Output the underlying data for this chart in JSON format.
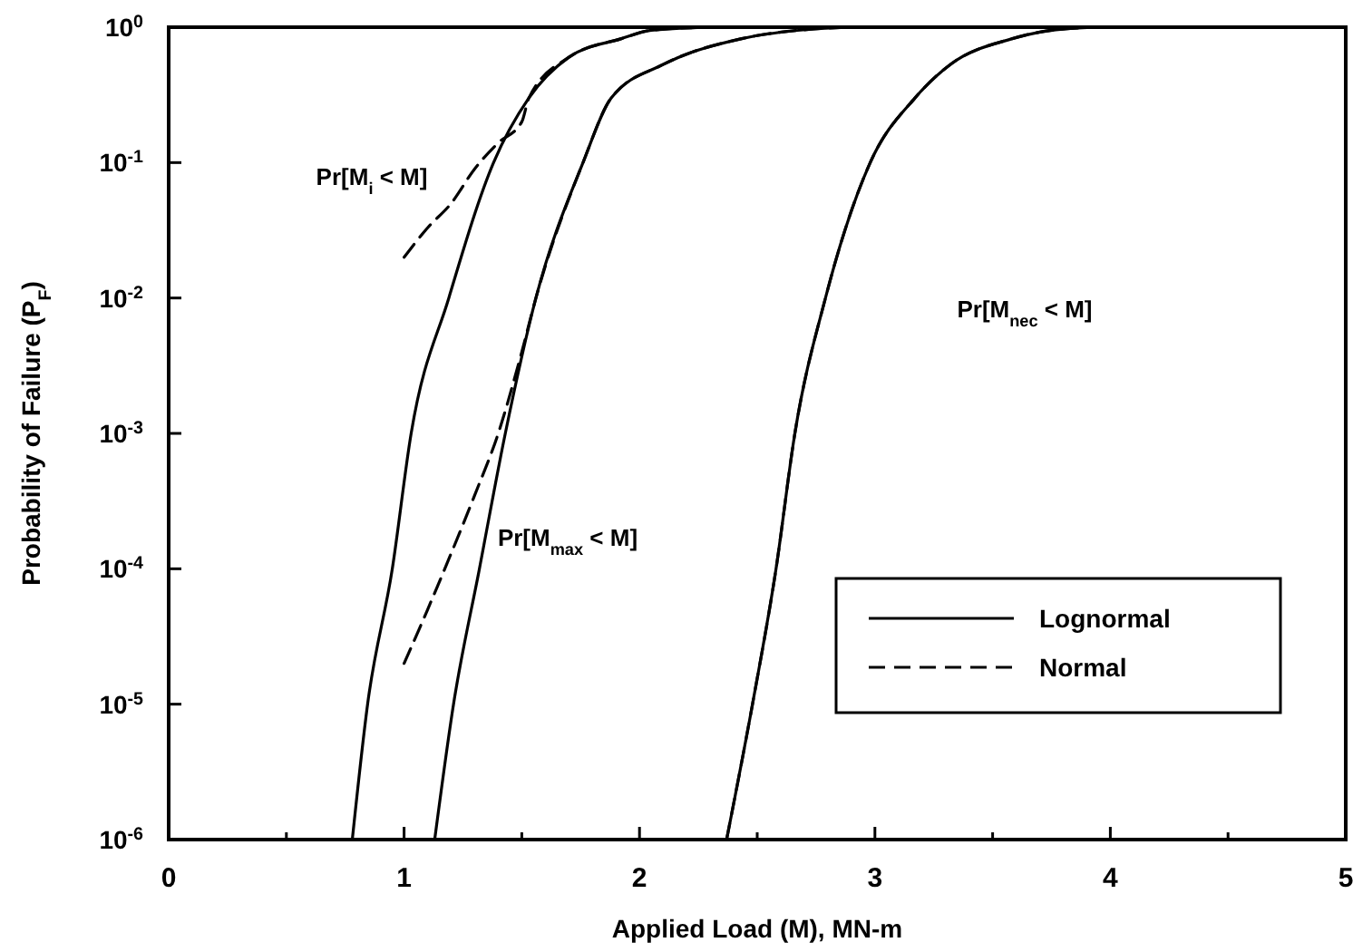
{
  "chart_data": {
    "type": "line",
    "xlabel": "Applied Load (M), MN-m",
    "ylabel": "Probability of Failure (P$_{F}$)",
    "log": "y",
    "xlim": [
      0,
      5
    ],
    "ylim": [
      1e-06,
      1
    ],
    "xticks": [
      0,
      {
        "value": 0.5,
        "label": null
      },
      1,
      {
        "value": 1.5,
        "label": null
      },
      2,
      {
        "value": 2.5,
        "label": null
      },
      3,
      {
        "value": 3.5,
        "label": null
      },
      4,
      {
        "value": 4.5,
        "label": null
      },
      5
    ],
    "yticks": [
      {
        "value": 1e-06,
        "label": "10$^{-6}$"
      },
      {
        "value": 1e-05,
        "label": "10$^{-5}$"
      },
      {
        "value": 0.0001,
        "label": "10$^{-4}$"
      },
      {
        "value": 0.001,
        "label": "10$^{-3}$"
      },
      {
        "value": 0.01,
        "label": "10$^{-2}$"
      },
      {
        "value": 0.1,
        "label": "10$^{-1}$"
      },
      {
        "value": 1,
        "label": "10$^{0}$"
      }
    ],
    "grid": false,
    "legend": "bottom right",
    "series": [
      {
        "name": "Lognormal",
        "color": "#000000",
        "line_style": "solid",
        "x": [
          0.78,
          0.845,
          0.95,
          1.03,
          1.19,
          1.38,
          1.53,
          1.7,
          1.92,
          2.05,
          2.3
        ],
        "values": [
          1e-06,
          1e-05,
          0.0001,
          0.001,
          0.01,
          0.1,
          0.3,
          0.6,
          0.82,
          0.95,
          1
        ]
      },
      {
        "name": "Normal",
        "color": "#000000",
        "line_style": "dashed",
        "x": [
          1.0,
          1.1,
          1.2,
          1.3,
          1.4,
          1.5,
          1.53,
          1.7,
          1.92,
          2.05,
          2.3
        ],
        "values": [
          0.02,
          0.033,
          0.05,
          0.09,
          0.14,
          0.2,
          0.3,
          0.6,
          0.82,
          0.95,
          1
        ]
      },
      {
        "color": "#000000",
        "line_style": "solid",
        "x": [
          1.13,
          1.21,
          1.32,
          1.43,
          1.56,
          1.76,
          1.88,
          2.1,
          2.43,
          2.74,
          2.9
        ],
        "values": [
          1e-06,
          1e-05,
          0.0001,
          0.001,
          0.01,
          0.1,
          0.3,
          0.53,
          0.82,
          0.97,
          1
        ]
      },
      {
        "color": "#000000",
        "line_style": "dashed",
        "x": [
          1.0,
          1.1,
          1.2,
          1.3,
          1.4,
          1.5,
          1.56,
          1.76,
          1.88,
          2.1,
          2.43,
          2.74,
          2.9
        ],
        "values": [
          2e-05,
          5e-05,
          0.00013,
          0.00035,
          0.001,
          0.004,
          0.01,
          0.1,
          0.3,
          0.53,
          0.82,
          0.97,
          1
        ]
      },
      {
        "color": "#000000",
        "line_style": "solid",
        "x": [
          2.37,
          2.48,
          2.58,
          2.66,
          2.79,
          2.98,
          3.17,
          3.32,
          3.58,
          3.83,
          4.0
        ],
        "values": [
          1e-06,
          1e-05,
          0.0001,
          0.001,
          0.01,
          0.1,
          0.3,
          0.53,
          0.82,
          0.98,
          1
        ]
      },
      {
        "color": "#000000",
        "line_style": "dashed",
        "x": [
          2.37,
          2.48,
          2.58,
          2.66,
          2.79,
          2.98,
          3.17,
          3.32,
          3.58,
          3.83,
          4.0
        ],
        "values": [
          1e-06,
          1e-05,
          0.0001,
          0.001,
          0.01,
          0.1,
          0.3,
          0.53,
          0.82,
          0.98,
          1
        ]
      }
    ],
    "annotations": [
      "Pr[M$_{i}$ < M]",
      "Pr[M$_{max}$ < M]",
      "Pr[M$_{nec}$ < M]"
    ]
  }
}
